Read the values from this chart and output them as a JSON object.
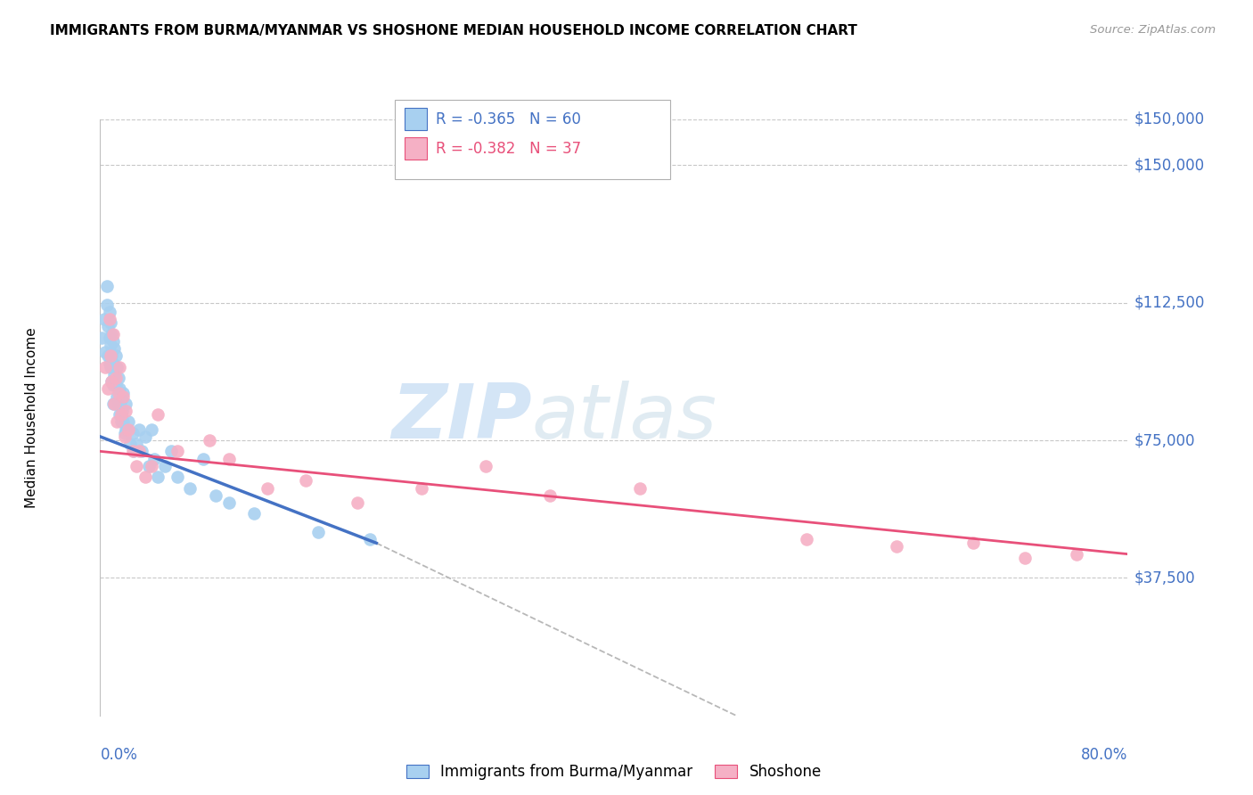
{
  "title": "IMMIGRANTS FROM BURMA/MYANMAR VS SHOSHONE MEDIAN HOUSEHOLD INCOME CORRELATION CHART",
  "source": "Source: ZipAtlas.com",
  "ylabel": "Median Household Income",
  "ytick_labels": [
    "$150,000",
    "$112,500",
    "$75,000",
    "$37,500"
  ],
  "ytick_values": [
    150000,
    112500,
    75000,
    37500
  ],
  "ymin": 0,
  "ymax": 162500,
  "xmin": 0.0,
  "xmax": 0.8,
  "watermark": "ZIPatlas",
  "color_blue": "#a8d0f0",
  "color_pink": "#f5b0c5",
  "color_blue_line": "#4472c4",
  "color_pink_line": "#e8507a",
  "color_axis_labels": "#4472c4",
  "color_grid": "#c8c8c8",
  "blue_scatter_x": [
    0.001,
    0.003,
    0.004,
    0.005,
    0.005,
    0.006,
    0.006,
    0.007,
    0.007,
    0.007,
    0.008,
    0.008,
    0.008,
    0.009,
    0.009,
    0.009,
    0.01,
    0.01,
    0.01,
    0.01,
    0.011,
    0.011,
    0.012,
    0.012,
    0.013,
    0.013,
    0.014,
    0.014,
    0.015,
    0.015,
    0.016,
    0.016,
    0.017,
    0.018,
    0.018,
    0.019,
    0.02,
    0.02,
    0.022,
    0.023,
    0.025,
    0.026,
    0.028,
    0.03,
    0.032,
    0.035,
    0.038,
    0.04,
    0.042,
    0.045,
    0.05,
    0.055,
    0.06,
    0.07,
    0.08,
    0.09,
    0.1,
    0.12,
    0.17,
    0.21
  ],
  "blue_scatter_y": [
    103000,
    108000,
    99000,
    117000,
    112000,
    106000,
    98000,
    110000,
    103000,
    96000,
    107000,
    101000,
    95000,
    104000,
    98000,
    91000,
    102000,
    96000,
    90000,
    85000,
    100000,
    93000,
    98000,
    90000,
    95000,
    87000,
    92000,
    85000,
    89000,
    82000,
    86000,
    80000,
    83000,
    88000,
    80000,
    77000,
    85000,
    78000,
    80000,
    74000,
    77000,
    72000,
    74000,
    78000,
    72000,
    76000,
    68000,
    78000,
    70000,
    65000,
    68000,
    72000,
    65000,
    62000,
    70000,
    60000,
    58000,
    55000,
    50000,
    48000
  ],
  "pink_scatter_x": [
    0.004,
    0.006,
    0.007,
    0.008,
    0.009,
    0.01,
    0.011,
    0.012,
    0.013,
    0.014,
    0.015,
    0.016,
    0.018,
    0.019,
    0.02,
    0.022,
    0.025,
    0.028,
    0.03,
    0.035,
    0.04,
    0.045,
    0.06,
    0.085,
    0.1,
    0.13,
    0.16,
    0.2,
    0.25,
    0.3,
    0.35,
    0.42,
    0.55,
    0.62,
    0.68,
    0.72,
    0.76
  ],
  "pink_scatter_y": [
    95000,
    89000,
    108000,
    98000,
    91000,
    104000,
    85000,
    92000,
    80000,
    88000,
    95000,
    82000,
    87000,
    76000,
    83000,
    78000,
    72000,
    68000,
    72000,
    65000,
    68000,
    82000,
    72000,
    75000,
    70000,
    62000,
    64000,
    58000,
    62000,
    68000,
    60000,
    62000,
    48000,
    46000,
    47000,
    43000,
    44000
  ],
  "blue_line_x": [
    0.0,
    0.215
  ],
  "blue_line_y": [
    76000,
    47000
  ],
  "pink_line_x": [
    0.0,
    0.8
  ],
  "pink_line_y": [
    72000,
    44000
  ],
  "dashed_line_x": [
    0.215,
    0.495
  ],
  "dashed_line_y": [
    47000,
    0
  ]
}
